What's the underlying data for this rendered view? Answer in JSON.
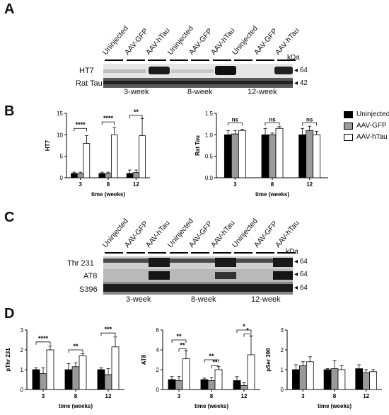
{
  "panels": {
    "A": "A",
    "B": "B",
    "C": "C",
    "D": "D"
  },
  "blotA": {
    "lanes": [
      "Uninjected",
      "AAV-GFP",
      "AAV-hTau",
      "Uninjected",
      "AAV-GFP",
      "AAV-hTau",
      "Uninjected",
      "AAV-GFP",
      "AAV-hTau"
    ],
    "kda": "kDa",
    "rows": [
      {
        "label": "HT7",
        "marker": "64"
      },
      {
        "label": "Rat Tau",
        "marker": "42"
      }
    ],
    "weeks": [
      "3-week",
      "8-week",
      "12-week"
    ]
  },
  "blotC": {
    "lanes": [
      "Uninjected",
      "AAV-GFP",
      "AAV-hTau",
      "Uninjected",
      "AAV-GFP",
      "AAV-hTau",
      "Uninjected",
      "AAV-GFP",
      "AAV-hTau"
    ],
    "kda": "kDa",
    "rows": [
      {
        "label": "Thr 231",
        "marker": "64"
      },
      {
        "label": "AT8",
        "marker": "64"
      },
      {
        "label": "S396",
        "marker": "64"
      }
    ],
    "weeks": [
      "3-week",
      "8-week",
      "12-week"
    ]
  },
  "legend": {
    "items": [
      "Uninjected",
      "AAV-GFP",
      "AAV-hTau"
    ]
  },
  "colors": {
    "Uninjected": "#000000",
    "AAV-GFP": "#9a9a9a",
    "AAV-hTau": "#ffffff"
  },
  "chart_data": [
    {
      "id": "B1",
      "type": "bar",
      "categories": [
        "3",
        "8",
        "12"
      ],
      "xlabel": "time (weeks)",
      "ylabel": "HT7",
      "ylim": [
        0,
        15
      ],
      "yticks": [
        0,
        5,
        10,
        15
      ],
      "series": [
        {
          "name": "Uninjected",
          "values": [
            1.0,
            1.0,
            1.0
          ],
          "err": [
            0.3,
            0.3,
            0.8
          ]
        },
        {
          "name": "AAV-GFP",
          "values": [
            1.0,
            1.0,
            1.2
          ],
          "err": [
            0.3,
            0.3,
            0.6
          ]
        },
        {
          "name": "AAV-hTau",
          "values": [
            8.0,
            10.0,
            9.8
          ],
          "err": [
            1.8,
            1.7,
            4.0
          ]
        }
      ],
      "annotations": [
        {
          "label": "****",
          "cat": 0,
          "from": 0,
          "to": 2,
          "y": 11.5
        },
        {
          "label": "****",
          "cat": 1,
          "from": 0,
          "to": 2,
          "y": 13.0
        },
        {
          "label": "**",
          "cat": 2,
          "from": 0,
          "to": 2,
          "y": 14.5
        }
      ]
    },
    {
      "id": "B2",
      "type": "bar",
      "categories": [
        "3",
        "8",
        "12"
      ],
      "xlabel": "time (weeks)",
      "ylabel": "Rat Tau",
      "ylim": [
        0,
        1.5
      ],
      "yticks": [
        0.0,
        0.5,
        1.0,
        1.5
      ],
      "series": [
        {
          "name": "Uninjected",
          "values": [
            1.0,
            1.0,
            1.0
          ],
          "err": [
            0.1,
            0.15,
            0.15
          ]
        },
        {
          "name": "AAV-GFP",
          "values": [
            1.02,
            1.0,
            1.1
          ],
          "err": [
            0.08,
            0.04,
            0.1
          ]
        },
        {
          "name": "AAV-hTau",
          "values": [
            1.1,
            1.15,
            1.0
          ],
          "err": [
            0.03,
            0.04,
            0.08
          ]
        }
      ],
      "annotations": [
        {
          "label": "ns",
          "cat": 0,
          "from": 0,
          "to": 2,
          "y": 1.28
        },
        {
          "label": "ns",
          "cat": 1,
          "from": 0,
          "to": 2,
          "y": 1.28
        },
        {
          "label": "ns",
          "cat": 2,
          "from": 0,
          "to": 2,
          "y": 1.28
        }
      ]
    },
    {
      "id": "D1",
      "type": "bar",
      "categories": [
        "3",
        "8",
        "12"
      ],
      "xlabel": "time (weeks)",
      "ylabel": "pThr 231",
      "ylim": [
        0,
        3
      ],
      "yticks": [
        0,
        1,
        2,
        3
      ],
      "series": [
        {
          "name": "Uninjected",
          "values": [
            1.0,
            1.0,
            1.0
          ],
          "err": [
            0.1,
            0.3,
            0.1
          ]
        },
        {
          "name": "AAV-GFP",
          "values": [
            0.8,
            1.15,
            0.75
          ],
          "err": [
            0.3,
            0.2,
            0.3
          ]
        },
        {
          "name": "AAV-hTau",
          "values": [
            2.0,
            1.7,
            2.15
          ],
          "err": [
            0.2,
            0.1,
            0.5
          ]
        }
      ],
      "annotations": [
        {
          "label": "****",
          "cat": 0,
          "from": 0,
          "to": 2,
          "y": 2.4
        },
        {
          "label": "**",
          "cat": 1,
          "from": 0,
          "to": 2,
          "y": 2.0
        },
        {
          "label": "***",
          "cat": 2,
          "from": 0,
          "to": 2,
          "y": 2.85
        }
      ]
    },
    {
      "id": "D2",
      "type": "bar",
      "categories": [
        "3",
        "8",
        "12"
      ],
      "xlabel": "time (weeks)",
      "ylabel": "AT8",
      "ylim": [
        0,
        6
      ],
      "yticks": [
        0,
        2,
        4,
        6
      ],
      "series": [
        {
          "name": "Uninjected",
          "values": [
            1.0,
            1.0,
            0.9
          ],
          "err": [
            0.3,
            0.15,
            0.4
          ]
        },
        {
          "name": "AAV-GFP",
          "values": [
            0.9,
            0.9,
            0.4
          ],
          "err": [
            0.4,
            0.3,
            0.3
          ]
        },
        {
          "name": "AAV-hTau",
          "values": [
            3.1,
            2.0,
            3.5
          ],
          "err": [
            0.8,
            0.3,
            1.9
          ]
        }
      ],
      "annotations": [
        {
          "label": "**",
          "cat": 0,
          "from": 0,
          "to": 2,
          "y": 5.0
        },
        {
          "label": "**",
          "cat": 0,
          "from": 1,
          "to": 2,
          "y": 4.1
        },
        {
          "label": "**",
          "cat": 1,
          "from": 0,
          "to": 2,
          "y": 3.0
        },
        {
          "label": "**",
          "cat": 1,
          "from": 1,
          "to": 2,
          "y": 2.4
        },
        {
          "label": "*",
          "cat": 2,
          "from": 0,
          "to": 2,
          "y": 6.0
        },
        {
          "label": "*",
          "cat": 2,
          "from": 1,
          "to": 2,
          "y": 5.6
        }
      ]
    },
    {
      "id": "D3",
      "type": "bar",
      "categories": [
        "3",
        "8",
        "12"
      ],
      "xlabel": "time (weeks)",
      "ylabel": "pSer 396",
      "ylim": [
        0,
        3
      ],
      "yticks": [
        0,
        1,
        2,
        3
      ],
      "series": [
        {
          "name": "Uninjected",
          "values": [
            1.0,
            1.0,
            1.05
          ],
          "err": [
            0.25,
            0.05,
            0.2
          ]
        },
        {
          "name": "AAV-GFP",
          "values": [
            1.2,
            1.05,
            0.85
          ],
          "err": [
            0.2,
            0.4,
            0.15
          ]
        },
        {
          "name": "AAV-hTau",
          "values": [
            1.4,
            1.0,
            0.9
          ],
          "err": [
            0.25,
            0.2,
            0.1
          ]
        }
      ],
      "annotations": []
    }
  ]
}
